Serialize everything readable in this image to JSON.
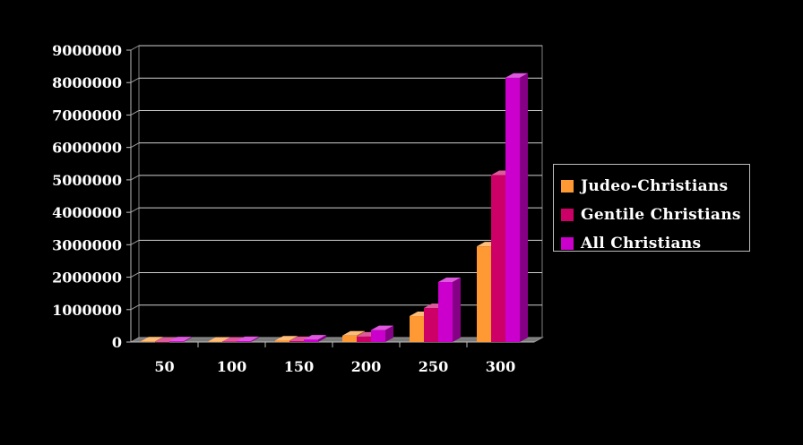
{
  "chart_data": {
    "type": "bar",
    "categories": [
      "50",
      "100",
      "150",
      "200",
      "250",
      "300"
    ],
    "series": [
      {
        "name": "Judeo-Christians",
        "color": "#ff9933",
        "values": [
          20000,
          15000,
          50000,
          200000,
          800000,
          2950000
        ]
      },
      {
        "name": "Gentile Christians",
        "color": "#cc0066",
        "values": [
          5000,
          15000,
          30000,
          170000,
          1050000,
          5150000
        ]
      },
      {
        "name": "All Christians",
        "color": "#cc00cc",
        "values": [
          25000,
          30000,
          80000,
          370000,
          1850000,
          8150000
        ]
      }
    ],
    "yticks": [
      "0",
      "1000000",
      "2000000",
      "3000000",
      "4000000",
      "5000000",
      "6000000",
      "7000000",
      "8000000",
      "9000000"
    ],
    "ylim": [
      0,
      9000000
    ],
    "grid": true,
    "legend_position": "right",
    "title": "",
    "xlabel": "",
    "ylabel": ""
  }
}
